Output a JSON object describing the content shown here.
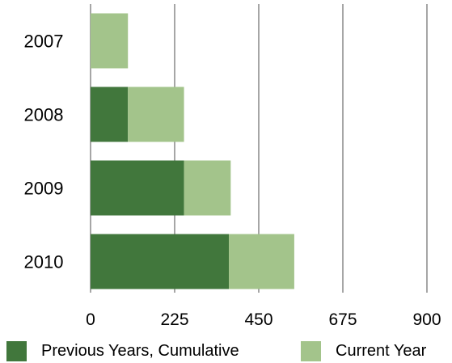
{
  "chart_data": {
    "type": "bar",
    "orientation": "horizontal",
    "stacked": true,
    "categories": [
      "2007",
      "2008",
      "2009",
      "2010"
    ],
    "series": [
      {
        "name": "Previous Years, Cumulative",
        "values": [
          0,
          100,
          250,
          370
        ],
        "color": "#41773c"
      },
      {
        "name": "Current Year",
        "values": [
          100,
          150,
          125,
          175
        ],
        "color": "#a3c48b"
      }
    ],
    "xlim": [
      0,
      900
    ],
    "xticks": [
      "0",
      "225",
      "450",
      "675",
      "900"
    ],
    "grid": "vertical",
    "legend_position": "bottom"
  }
}
